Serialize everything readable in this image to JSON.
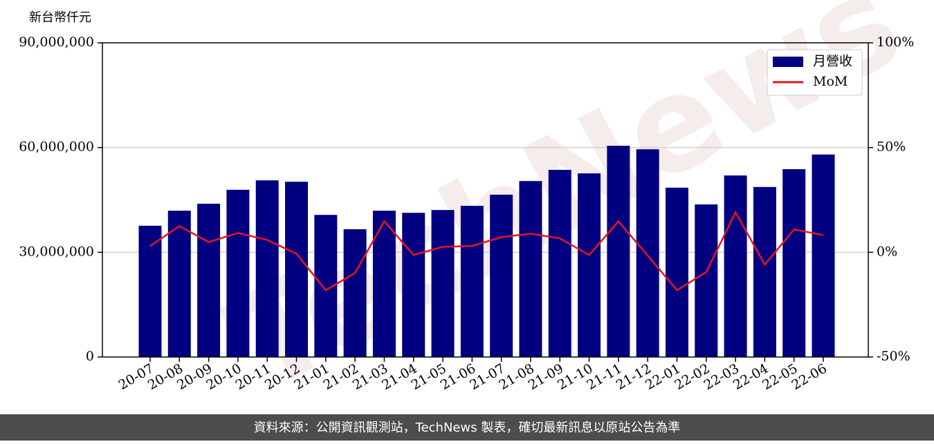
{
  "chart_data": {
    "type": "bar",
    "y_label": "新台幣仟元",
    "watermark": "TechNews",
    "footer": "資料來源：公開資訊觀測站，TechNews 製表，確切最新訊息以原站公告為準",
    "categories": [
      "20-07",
      "20-08",
      "20-09",
      "20-10",
      "20-11",
      "20-12",
      "21-01",
      "21-02",
      "21-03",
      "21-04",
      "21-05",
      "21-06",
      "21-07",
      "21-08",
      "21-09",
      "21-10",
      "21-11",
      "21-12",
      "22-01",
      "22-02",
      "22-03",
      "22-04",
      "22-05",
      "22-06"
    ],
    "series": [
      {
        "name": "月營收",
        "type": "bar",
        "color": "#000080",
        "values": [
          37600000,
          41900000,
          43900000,
          47900000,
          50600000,
          50200000,
          40700000,
          36600000,
          41900000,
          41300000,
          42100000,
          43300000,
          46500000,
          50400000,
          53600000,
          52600000,
          60500000,
          59500000,
          48500000,
          43700000,
          52000000,
          48700000,
          53800000,
          58000000
        ]
      },
      {
        "name": "MoM",
        "type": "line",
        "axis": "y2",
        "color": "#e8141c",
        "values": [
          3.0,
          12.5,
          4.9,
          9.2,
          5.9,
          -0.7,
          -18.1,
          -9.9,
          14.8,
          -1.3,
          2.6,
          3.0,
          7.2,
          8.9,
          6.6,
          -1.3,
          14.8,
          -1.6,
          -18.1,
          -9.5,
          19.1,
          -5.9,
          10.9,
          8.2
        ]
      }
    ],
    "ylim": [
      0,
      90000000
    ],
    "yticks": [
      0,
      {
        "value": 30000000,
        "label": "30,000,000"
      },
      {
        "value": 60000000,
        "label": "60,000,000"
      },
      {
        "value": 90000000,
        "label": "90,000,000"
      }
    ],
    "y2lim": [
      -50,
      100
    ],
    "y2ticks": [
      {
        "value": -50,
        "label": "-50%"
      },
      {
        "value": 0,
        "label": "0%"
      },
      {
        "value": 50,
        "label": "50%"
      },
      {
        "value": 100,
        "label": "100%"
      }
    ],
    "grid": true,
    "legend": "upper right"
  }
}
